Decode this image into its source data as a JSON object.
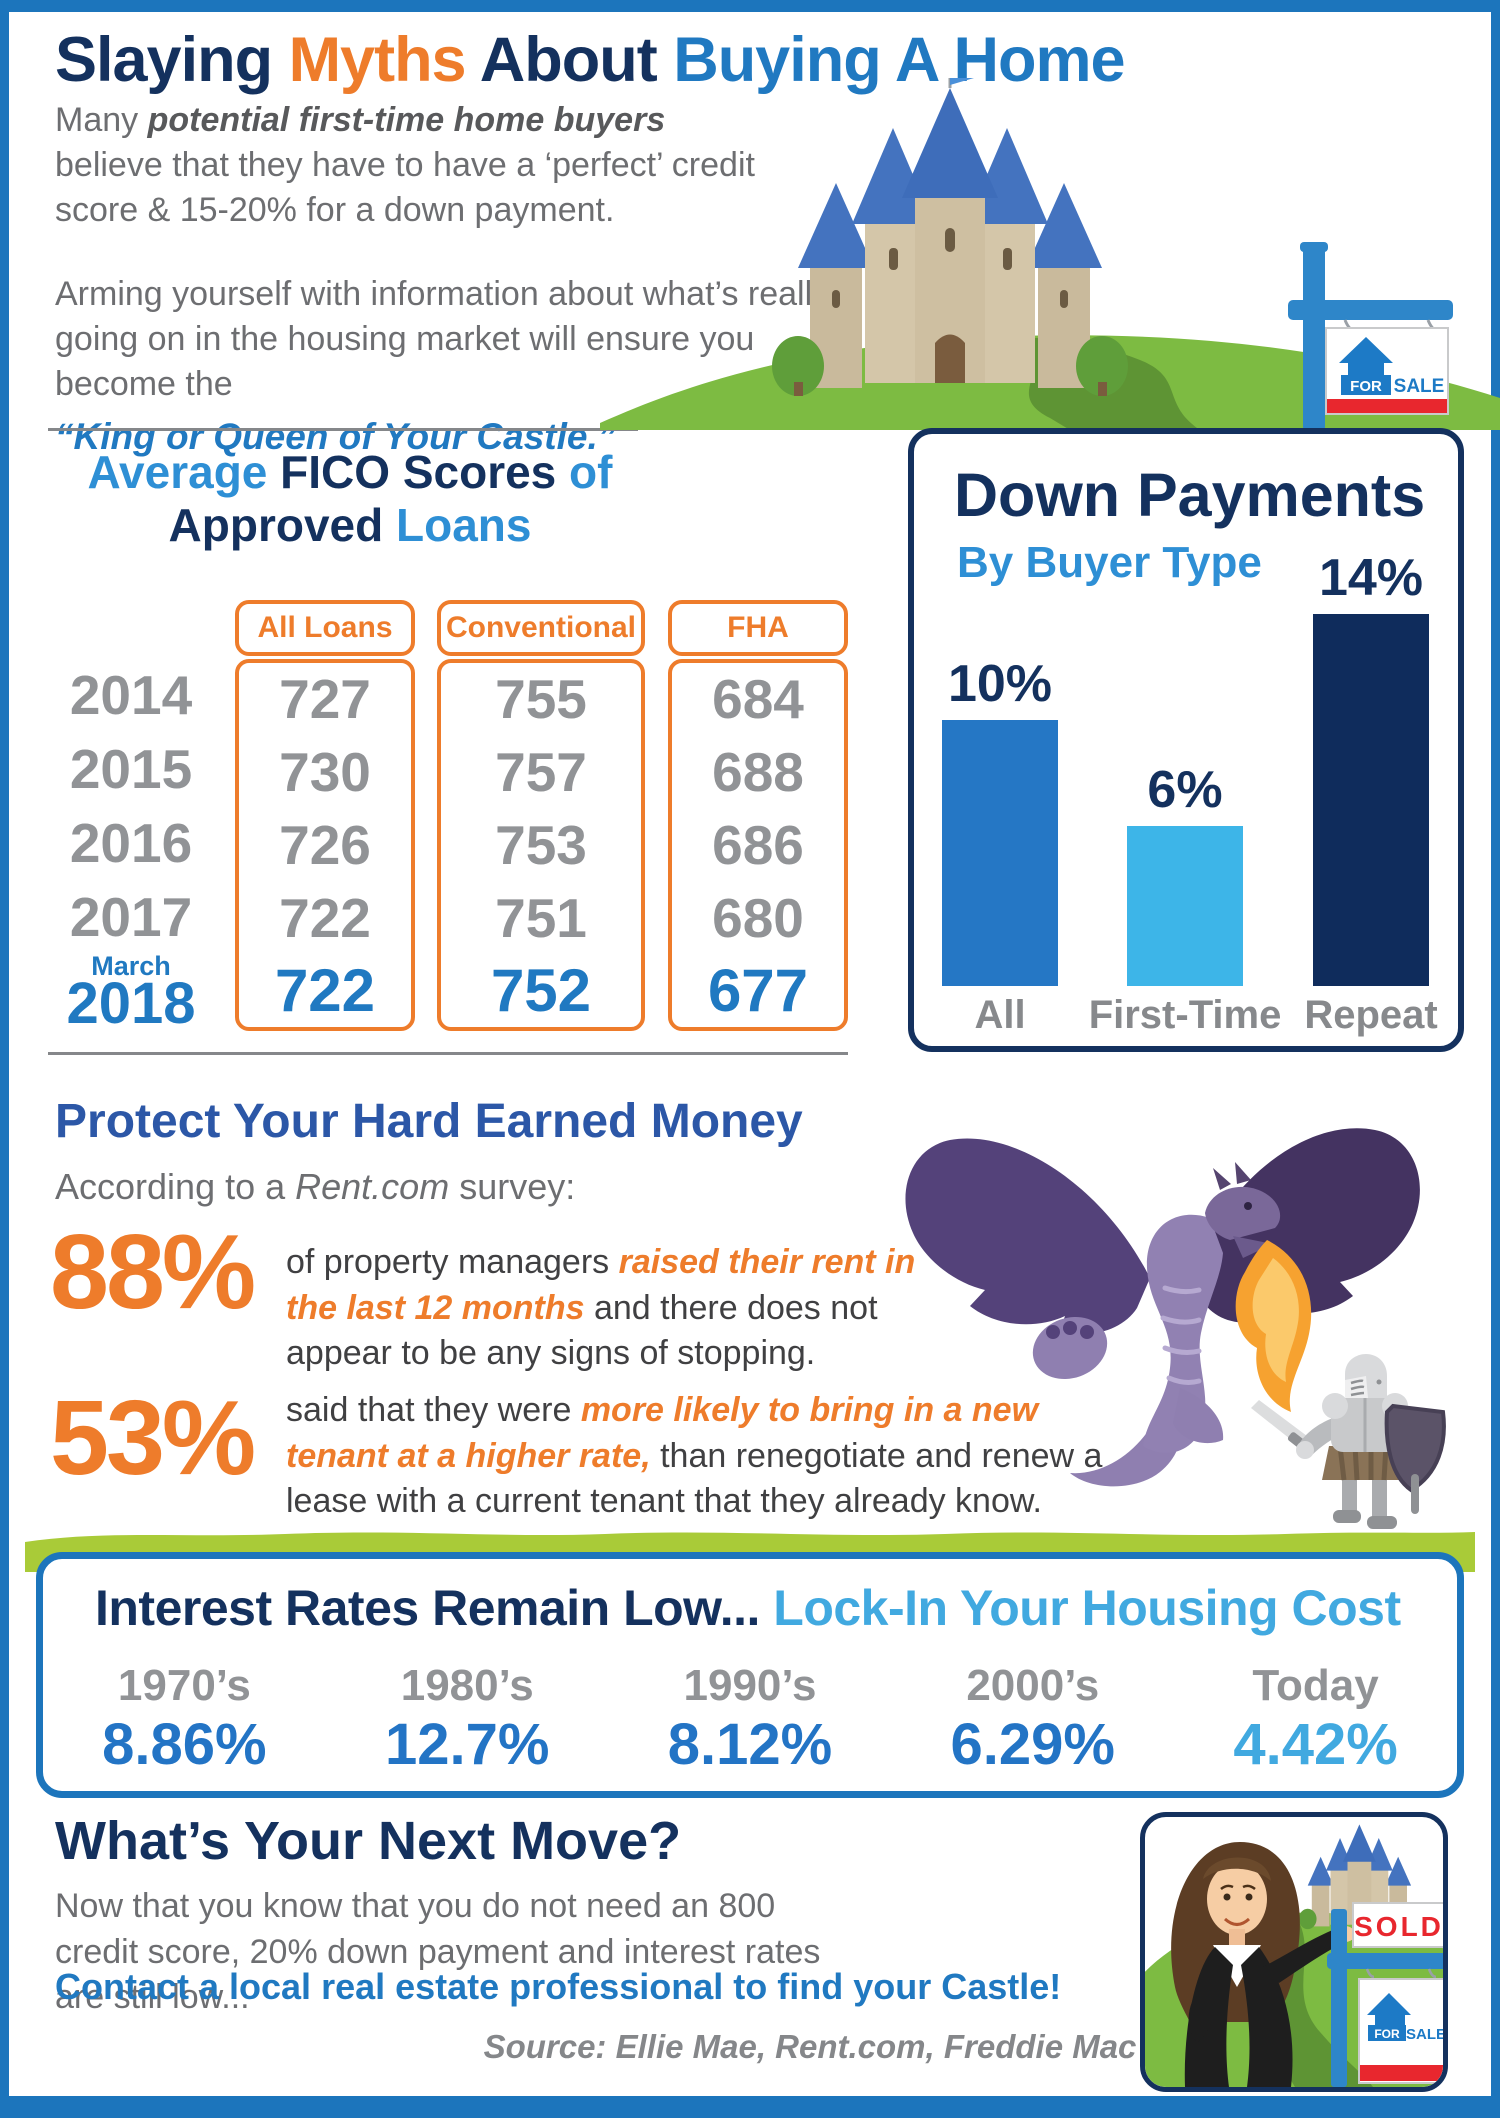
{
  "colors": {
    "frame_blue": "#1C75BC",
    "navy": "#14315E",
    "orange": "#EE7C2B",
    "bright_blue": "#2079C1",
    "mid_blue": "#2E8FD5",
    "light_blue": "#41A9E0",
    "royal_blue": "#2C57A7",
    "rate_blue": "#2374C5",
    "gray_text": "#6D6E71",
    "gray_dark": "#58595B",
    "gray_value": "#919396",
    "divider_gray": "#85878A",
    "stat_text": "#404042",
    "bar_label_gray": "#87898C",
    "grass_green": "#A9CB38",
    "hill_green": "#7DBB42",
    "sign_red": "#E8272E"
  },
  "page_title": {
    "part1": "Slaying ",
    "part2": "Myths",
    "part3": " About ",
    "part4": "Buying A Home"
  },
  "intro": {
    "p1_pre": "Many ",
    "p1_emphasis": "potential first-time home buyers",
    "p1_post": " believe that they have to have a ‘perfect’ credit score & 15-20% for a down payment.",
    "p2_text": "Arming yourself with information about what’s really going on in the housing market will ensure you become the",
    "p2_quote": "“King or Queen of Your Castle.”"
  },
  "fico": {
    "title_a": "Average",
    "title_b": " FICO Scores ",
    "title_c": "of",
    "title_d": "Approved",
    "title_e": " Loans",
    "columns": [
      "All Loans",
      "Conventional",
      "FHA"
    ],
    "rows": [
      {
        "year": "2014",
        "all": "727",
        "conventional": "755",
        "fha": "684"
      },
      {
        "year": "2015",
        "all": "730",
        "conventional": "757",
        "fha": "688"
      },
      {
        "year": "2016",
        "all": "726",
        "conventional": "753",
        "fha": "686"
      },
      {
        "year": "2017",
        "all": "722",
        "conventional": "751",
        "fha": "680"
      },
      {
        "year_prefix": "March",
        "year": "2018",
        "all": "722",
        "conventional": "752",
        "fha": "677"
      }
    ]
  },
  "chart_data": [
    {
      "type": "bar",
      "title": "Down Payments",
      "subtitle": "By Buyer Type",
      "categories": [
        "All",
        "First-Time",
        "Repeat"
      ],
      "values": [
        10,
        6,
        14
      ],
      "value_labels": [
        "10%",
        "6%",
        "14%"
      ],
      "bar_colors": [
        "#2577C5",
        "#3DB5E8",
        "#0F2C5C"
      ],
      "unit": "%",
      "ylim": [
        0,
        15
      ],
      "legend": false,
      "grid": false
    },
    {
      "type": "table",
      "title": "Average FICO Scores of Approved Loans",
      "columns": [
        "Year",
        "All Loans",
        "Conventional",
        "FHA"
      ],
      "rows": [
        [
          "2014",
          727,
          755,
          684
        ],
        [
          "2015",
          730,
          757,
          688
        ],
        [
          "2016",
          726,
          753,
          686
        ],
        [
          "2017",
          722,
          751,
          680
        ],
        [
          "March 2018",
          722,
          752,
          677
        ]
      ]
    },
    {
      "type": "table",
      "title": "Interest Rates Remain Low... Lock-In Your Housing Cost",
      "columns": [
        "1970’s",
        "1980’s",
        "1990’s",
        "2000’s",
        "Today"
      ],
      "rows": [
        [
          "8.86%",
          "12.7%",
          "8.12%",
          "6.29%",
          "4.42%"
        ]
      ]
    }
  ],
  "protect": {
    "heading": "Protect Your Hard Earned Money",
    "survey_pre": "According to a ",
    "survey_source": "Rent.com",
    "survey_post": " survey:",
    "stats": [
      {
        "value": "88%",
        "pre": "of property managers ",
        "highlight": "raised their rent in the last 12 months",
        "post": " and there does not appear to be any signs of stopping."
      },
      {
        "value": "53%",
        "pre": "said that they were ",
        "highlight": "more likely to bring in a new tenant at a higher rate,",
        "post": " than renegotiate and renew a lease with a current tenant that they already know."
      }
    ]
  },
  "rates": {
    "title_dark": "Interest Rates Remain Low... ",
    "title_light": "Lock-In Your Housing Cost",
    "items": [
      {
        "period": "1970’s",
        "rate": "8.86%"
      },
      {
        "period": "1980’s",
        "rate": "12.7%"
      },
      {
        "period": "1990’s",
        "rate": "8.12%"
      },
      {
        "period": "2000’s",
        "rate": "6.29%"
      },
      {
        "period": "Today",
        "rate": "4.42%"
      }
    ]
  },
  "next_move": {
    "heading": "What’s Your Next Move?",
    "body": "Now that you know that you do not need an 800 credit score, 20% down payment and interest rates are still low...",
    "cta": "Contact a local real estate professional to find your Castle!",
    "source": "Source: Ellie Mae, Rent.com, Freddie Mac"
  },
  "signs": {
    "top": {
      "for": "FOR",
      "sale": "SALE"
    },
    "bottom": {
      "sold": "SOLD",
      "for": "FOR",
      "sale": "SALE"
    }
  }
}
